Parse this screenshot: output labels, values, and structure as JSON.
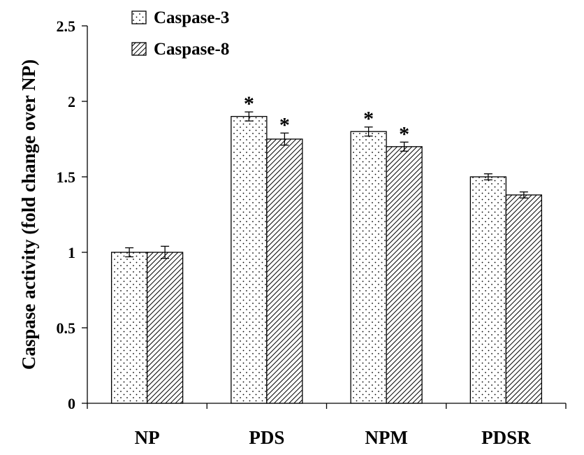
{
  "chart_data": {
    "type": "bar",
    "categories": [
      "NP",
      "PDS",
      "NPM",
      "PDSR"
    ],
    "series": [
      {
        "name": "Caspase-3",
        "values": [
          1.0,
          1.9,
          1.8,
          1.5
        ],
        "errors": [
          0.03,
          0.03,
          0.03,
          0.02
        ],
        "significant": [
          false,
          true,
          true,
          false
        ],
        "pattern": "dots"
      },
      {
        "name": "Caspase-8",
        "values": [
          1.0,
          1.75,
          1.7,
          1.38
        ],
        "errors": [
          0.04,
          0.04,
          0.03,
          0.02
        ],
        "significant": [
          false,
          true,
          true,
          false
        ],
        "pattern": "diagonal-hatch"
      }
    ],
    "ylabel": "Caspase activity (fold change over NP)",
    "xlabel": "",
    "ylim": [
      0,
      2.5
    ],
    "yticks": [
      "0",
      "0.5",
      "1",
      "1.5",
      "2",
      "2.5"
    ],
    "significance_marker": "*",
    "grid": false,
    "legend_position": "top-left"
  }
}
